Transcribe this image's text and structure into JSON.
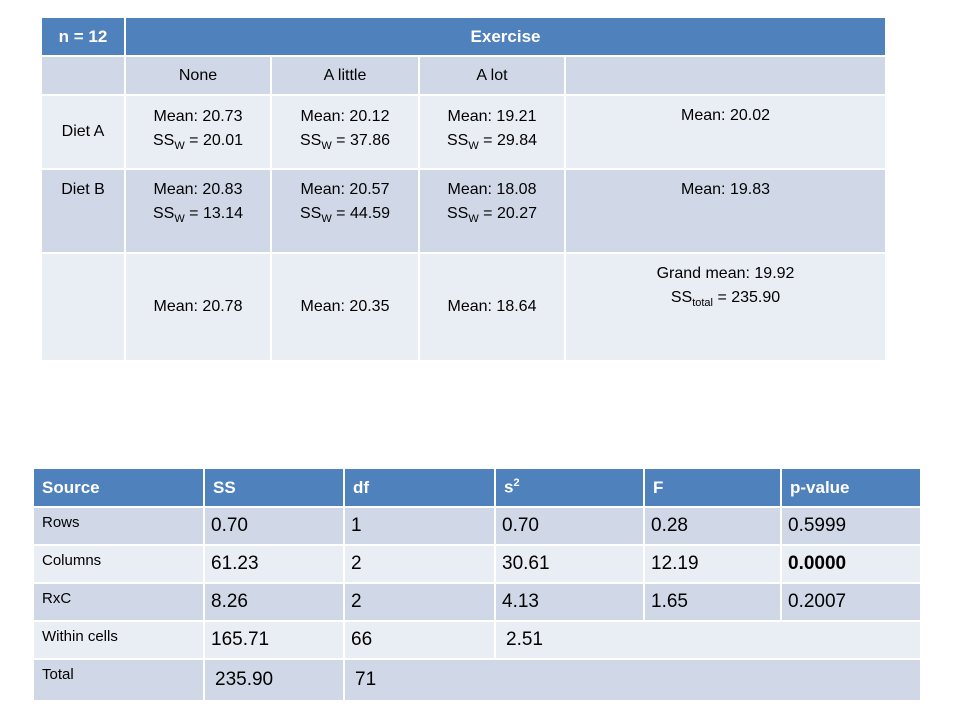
{
  "means_table": {
    "corner": "n = 12",
    "exercise_header": "Exercise",
    "levels": [
      "None",
      "A little",
      "A lot"
    ],
    "rows": [
      {
        "label": "Diet A",
        "cells": [
          {
            "mean": "Mean: 20.73",
            "ss": "= 20.01"
          },
          {
            "mean": "Mean: 20.12",
            "ss": "= 37.86"
          },
          {
            "mean": "Mean: 19.21",
            "ss": "= 29.84"
          }
        ],
        "row_mean": "Mean: 20.02"
      },
      {
        "label": "Diet B",
        "cells": [
          {
            "mean": "Mean: 20.83",
            "ss": "= 13.14"
          },
          {
            "mean": "Mean: 20.57",
            "ss": "= 44.59"
          },
          {
            "mean": "Mean: 18.08",
            "ss": "= 20.27"
          }
        ],
        "row_mean": "Mean: 19.83"
      }
    ],
    "column_means": [
      "Mean: 20.78",
      "Mean: 20.35",
      "Mean: 18.64"
    ],
    "grand_mean": "Grand mean:  19.92",
    "ss_total": "= 235.90",
    "ss_symbol": "SS",
    "ss_w_sub": "W",
    "ss_total_sub": "total"
  },
  "anova_table": {
    "headers": {
      "source": "Source",
      "ss": "SS",
      "df": "df",
      "s": "s",
      "s_sup": "2",
      "f": "F",
      "p": "p-value"
    },
    "rows": [
      {
        "source": "Rows",
        "ss": "0.70",
        "df": "1",
        "s2": "0.70",
        "f": "0.28",
        "p": "0.5999"
      },
      {
        "source": "Columns",
        "ss": "61.23",
        "df": "2",
        "s2": "30.61",
        "f": "12.19",
        "p": "0.0000"
      },
      {
        "source": "RxC",
        "ss": "8.26",
        "df": "2",
        "s2": "4.13",
        "f": "1.65",
        "p": "0.2007"
      },
      {
        "source": "Within cells",
        "ss": "165.71",
        "df": "66",
        "s2": "2.51"
      },
      {
        "source": "Total",
        "ss": "235.90",
        "df": "71"
      }
    ]
  }
}
